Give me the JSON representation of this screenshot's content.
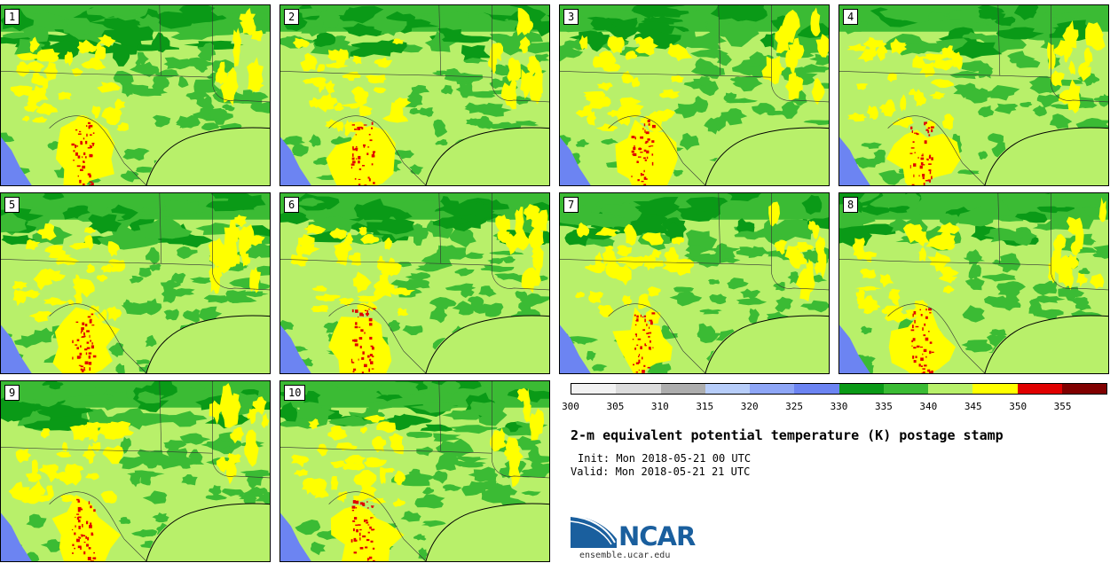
{
  "panels": [
    {
      "label": "1"
    },
    {
      "label": "2"
    },
    {
      "label": "3"
    },
    {
      "label": "4"
    },
    {
      "label": "5"
    },
    {
      "label": "6"
    },
    {
      "label": "7"
    },
    {
      "label": "8"
    },
    {
      "label": "9"
    },
    {
      "label": "10"
    }
  ],
  "colorbar": {
    "colors": [
      "#f2f2f2",
      "#dcdcdc",
      "#adadad",
      "#b7cdf9",
      "#8ea6f6",
      "#6c84f2",
      "#0a9a17",
      "#3bbb34",
      "#b8f06a",
      "#ffff00",
      "#e00000",
      "#800000"
    ],
    "ticks": [
      "300",
      "305",
      "310",
      "315",
      "320",
      "325",
      "330",
      "335",
      "340",
      "345",
      "350",
      "355"
    ]
  },
  "map_colors": {
    "background": "#b8f06a",
    "land_dark": "#3bbb34",
    "land_darker": "#0a9a17",
    "warm": "#ffff00",
    "hot": "#e00000",
    "water": "#6c84f2",
    "borders": "#333333"
  },
  "title": "2-m equivalent potential temperature (K) postage stamp",
  "init": "Init: Mon 2018-05-21 00 UTC",
  "valid": "Valid: Mon 2018-05-21 21 UTC",
  "logo": {
    "text": "NCAR",
    "url_text": "ensemble.ucar.edu"
  }
}
